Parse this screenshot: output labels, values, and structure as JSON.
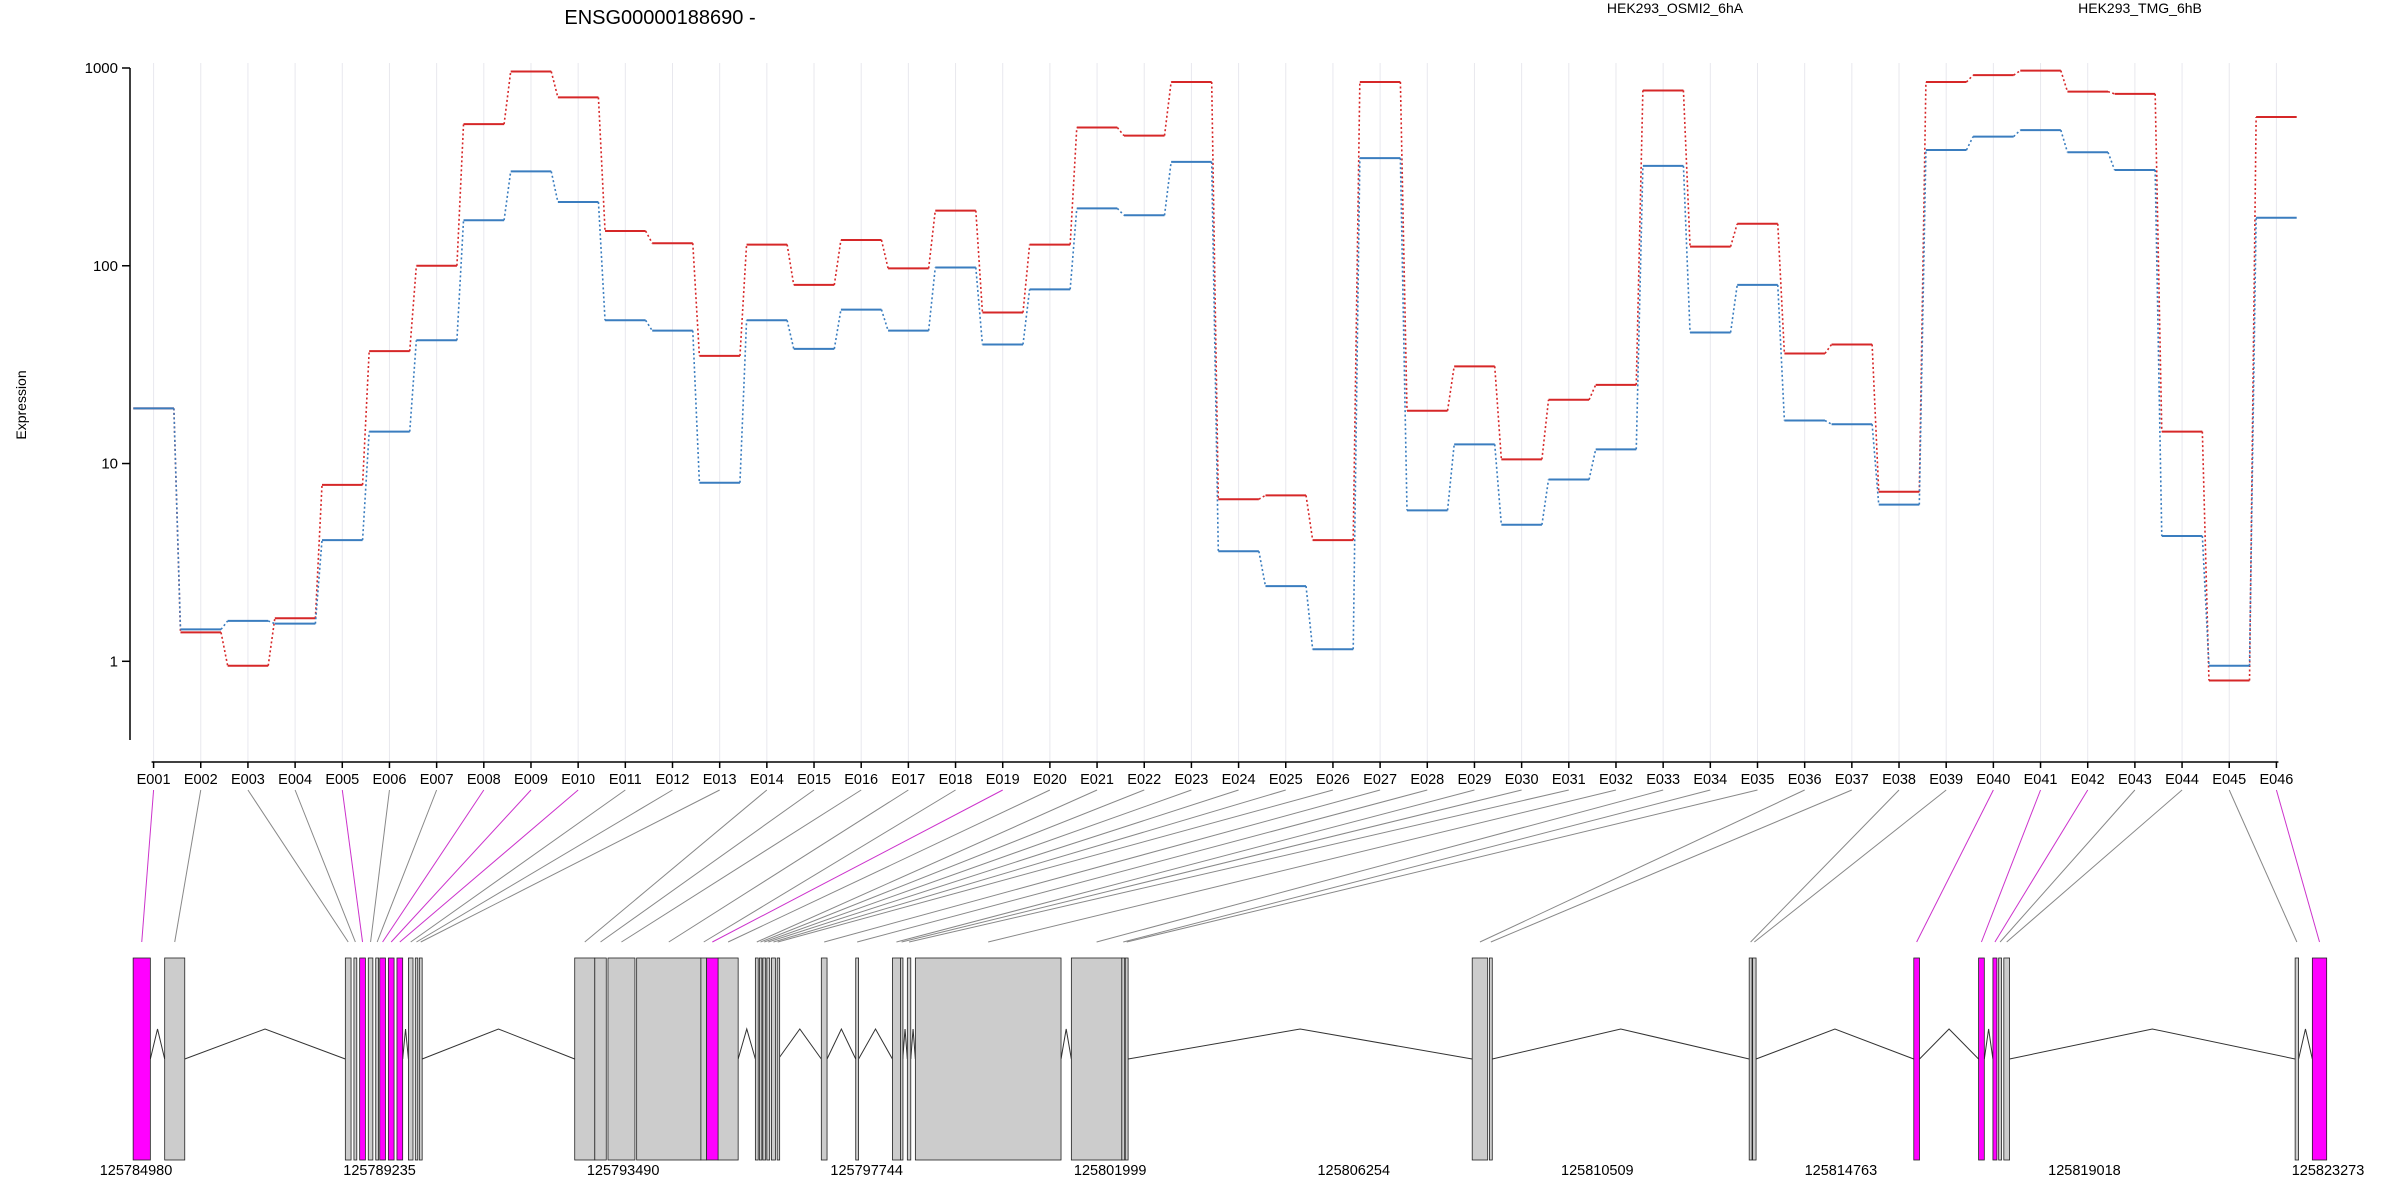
{
  "chart_data": [
    {
      "type": "line",
      "title": "ENSG00000188690 -",
      "ylabel": "Expression",
      "xlabel": "",
      "y_scale": "log",
      "ylim": [
        0.4,
        1000
      ],
      "y_ticks": [
        1,
        10,
        100,
        1000
      ],
      "y_tick_labels": [
        "1",
        "10",
        "100",
        "1000"
      ],
      "grid": "vertical",
      "legend_position": "top-right",
      "categories": [
        "E001",
        "E002",
        "E003",
        "E004",
        "E005",
        "E006",
        "E007",
        "E008",
        "E009",
        "E010",
        "E011",
        "E012",
        "E013",
        "E014",
        "E015",
        "E016",
        "E017",
        "E018",
        "E019",
        "E020",
        "E021",
        "E022",
        "E023",
        "E024",
        "E025",
        "E026",
        "E027",
        "E028",
        "E029",
        "E030",
        "E031",
        "E032",
        "E033",
        "E034",
        "E035",
        "E036",
        "E037",
        "E038",
        "E039",
        "E040",
        "E041",
        "E042",
        "E043",
        "E044",
        "E045",
        "E046"
      ],
      "series": [
        {
          "name": "HEK293_OSMI2_6hA",
          "color": "#d62728",
          "values": [
            19,
            1.4,
            0.95,
            1.65,
            7.8,
            37,
            100,
            520,
            960,
            710,
            150,
            130,
            35,
            128,
            80,
            135,
            97,
            190,
            58,
            128,
            500,
            455,
            850,
            6.6,
            6.9,
            4.1,
            850,
            18.5,
            31,
            10.5,
            21,
            25,
            770,
            125,
            163,
            36,
            40,
            7.2,
            850,
            920,
            970,
            760,
            740,
            14.5,
            0.8,
            565
          ]
        },
        {
          "name": "HEK293_TMG_6hB",
          "color": "#3a7dbf",
          "values": [
            19,
            1.45,
            1.6,
            1.55,
            4.1,
            14.5,
            42,
            170,
            300,
            210,
            53,
            47,
            8,
            53,
            38,
            60,
            47,
            98,
            40,
            76,
            195,
            180,
            335,
            3.6,
            2.4,
            1.15,
            350,
            5.8,
            12.5,
            4.9,
            8.3,
            11.8,
            320,
            46,
            80,
            16.5,
            15.8,
            6.2,
            385,
            450,
            485,
            375,
            305,
            4.3,
            0.95,
            175
          ]
        }
      ]
    },
    {
      "type": "gene_model",
      "chromosome_ticks": [
        "125784980",
        "125789235",
        "125793490",
        "125797744",
        "125801999",
        "125806254",
        "125810509",
        "125814763",
        "125819018",
        "125823273"
      ],
      "coord_range": [
        125784980,
        125823273
      ],
      "exon_color_default": "#cccccc",
      "exon_color_highlight": "#ff00ff",
      "highlighted_exons": [
        "E001",
        "E005",
        "E008",
        "E009",
        "E010",
        "E019",
        "E040",
        "E041",
        "E042",
        "E046"
      ],
      "exons": [
        {
          "id": "E001",
          "start": 125785000,
          "end": 125785300
        },
        {
          "id": "E002",
          "start": 125785550,
          "end": 125785900
        },
        {
          "id": "E003",
          "start": 125788700,
          "end": 125788800
        },
        {
          "id": "E004",
          "start": 125788850,
          "end": 125788900
        },
        {
          "id": "E005",
          "start": 125788950,
          "end": 125789050
        },
        {
          "id": "E006",
          "start": 125789100,
          "end": 125789180
        },
        {
          "id": "E007",
          "start": 125789230,
          "end": 125789280
        },
        {
          "id": "E008",
          "start": 125789300,
          "end": 125789400
        },
        {
          "id": "E009",
          "start": 125789450,
          "end": 125789550
        },
        {
          "id": "E010",
          "start": 125789600,
          "end": 125789700
        },
        {
          "id": "E011",
          "start": 125789800,
          "end": 125789880
        },
        {
          "id": "E012",
          "start": 125789920,
          "end": 125789960
        },
        {
          "id": "E013",
          "start": 125789990,
          "end": 125790040
        },
        {
          "id": "E014",
          "start": 125792700,
          "end": 125793050
        },
        {
          "id": "E015",
          "start": 125793050,
          "end": 125793250
        },
        {
          "id": "E016",
          "start": 125793280,
          "end": 125793750
        },
        {
          "id": "E017",
          "start": 125793780,
          "end": 125794900
        },
        {
          "id": "E018",
          "start": 125794900,
          "end": 125795000
        },
        {
          "id": "E019",
          "start": 125795000,
          "end": 125795200
        },
        {
          "id": "E020",
          "start": 125795200,
          "end": 125795550
        },
        {
          "id": "E021",
          "start": 125795850,
          "end": 125795900
        },
        {
          "id": "E022",
          "start": 125795920,
          "end": 125795960
        },
        {
          "id": "E023",
          "start": 125795980,
          "end": 125796030
        },
        {
          "id": "E024",
          "start": 125796050,
          "end": 125796100
        },
        {
          "id": "E025",
          "start": 125796130,
          "end": 125796200
        },
        {
          "id": "E026",
          "start": 125796230,
          "end": 125796250
        },
        {
          "id": "E027",
          "start": 125797000,
          "end": 125797100
        },
        {
          "id": "E028",
          "start": 125797600,
          "end": 125797650
        },
        {
          "id": "E029",
          "start": 125798240,
          "end": 125798380
        },
        {
          "id": "E030",
          "start": 125798380,
          "end": 125798420
        },
        {
          "id": "E031",
          "start": 125798500,
          "end": 125798560
        },
        {
          "id": "E032",
          "start": 125798640,
          "end": 125801180
        },
        {
          "id": "E033",
          "start": 125801360,
          "end": 125802240
        },
        {
          "id": "E034",
          "start": 125802240,
          "end": 125802290
        },
        {
          "id": "E035",
          "start": 125802300,
          "end": 125802350
        },
        {
          "id": "E036",
          "start": 125808350,
          "end": 125808620
        },
        {
          "id": "E037",
          "start": 125808650,
          "end": 125808700
        },
        {
          "id": "E038",
          "start": 125813180,
          "end": 125813230
        },
        {
          "id": "E039",
          "start": 125813240,
          "end": 125813300
        },
        {
          "id": "E040",
          "start": 125816050,
          "end": 125816150
        },
        {
          "id": "E041",
          "start": 125817180,
          "end": 125817280
        },
        {
          "id": "E042",
          "start": 125817430,
          "end": 125817500
        },
        {
          "id": "E043",
          "start": 125817530,
          "end": 125817580
        },
        {
          "id": "E044",
          "start": 125817620,
          "end": 125817720
        },
        {
          "id": "E045",
          "start": 125822700,
          "end": 125822760
        },
        {
          "id": "E046",
          "start": 125823000,
          "end": 125823250
        }
      ]
    }
  ]
}
